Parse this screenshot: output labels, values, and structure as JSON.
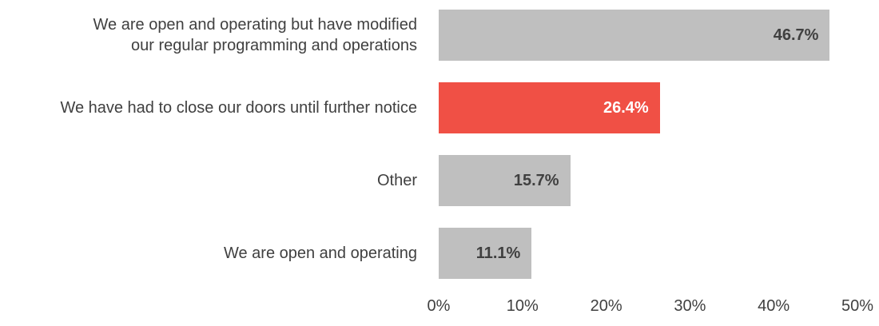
{
  "chart_data": {
    "type": "bar",
    "orientation": "horizontal",
    "categories": [
      "We are open and operating but have modified our regular programming and operations",
      "We have had to close our doors until further notice",
      "Other",
      "We are open and operating"
    ],
    "values": [
      46.7,
      26.4,
      15.7,
      11.1
    ],
    "value_labels": [
      "46.7%",
      "26.4%",
      "15.7%",
      "11.1%"
    ],
    "colors": [
      "#bfbfbf",
      "#f05045",
      "#bfbfbf",
      "#bfbfbf"
    ],
    "label_colors": [
      "#404040",
      "#ffffff",
      "#404040",
      "#404040"
    ],
    "xlim": [
      0,
      50
    ],
    "xticks": [
      {
        "value": 0,
        "label": "0%"
      },
      {
        "value": 10,
        "label": "10%"
      },
      {
        "value": 20,
        "label": "20%"
      },
      {
        "value": 30,
        "label": "30%"
      },
      {
        "value": 40,
        "label": "40%"
      },
      {
        "value": 50,
        "label": "50%"
      }
    ],
    "grid": false
  }
}
